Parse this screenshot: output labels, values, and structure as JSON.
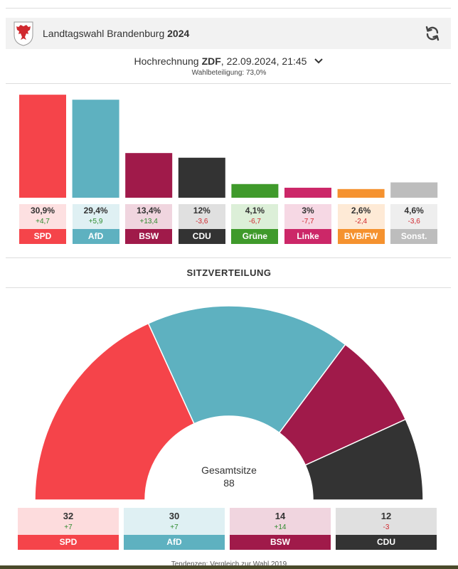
{
  "header": {
    "title_main": "Landtagswahl Brandenburg",
    "title_year": "2024",
    "refresh_icon": "refresh-icon",
    "crest_icon": "brandenburg-eagle-crest-icon"
  },
  "poll": {
    "prefix": "Hochrechnung",
    "source": "ZDF",
    "datetime": ", 22.09.2024, 21:45",
    "turnout": "Wahlbeteiligung: 73,0%"
  },
  "chart_data": [
    {
      "type": "bar",
      "title": "",
      "categories": [
        "SPD",
        "AfD",
        "BSW",
        "CDU",
        "Grüne",
        "Linke",
        "BVB/FW",
        "Sonst."
      ],
      "values": [
        30.9,
        29.4,
        13.4,
        12.0,
        4.1,
        3.0,
        2.6,
        4.6
      ],
      "value_labels": [
        "30,9%",
        "29,4%",
        "13,4%",
        "12%",
        "4,1%",
        "3%",
        "2,6%",
        "4,6%"
      ],
      "diffs": [
        "+4,7",
        "+5,9",
        "+13,4",
        "-3,6",
        "-6,7",
        "-7,7",
        "-2,4",
        "-3,6"
      ],
      "colors": [
        "#f5444a",
        "#5eb1c0",
        "#a01a4a",
        "#333333",
        "#3f9a2b",
        "#cc2768",
        "#f5922f",
        "#bdbdbd"
      ],
      "light_colors": [
        "#fde0e1",
        "#dff0f3",
        "#f0d5df",
        "#e0e0e0",
        "#dcefd8",
        "#f6d8e4",
        "#feead6",
        "#eeeeee"
      ],
      "ylim": [
        0,
        32
      ]
    },
    {
      "type": "pie",
      "title": "SITZVERTEILUNG",
      "categories": [
        "SPD",
        "AfD",
        "BSW",
        "CDU"
      ],
      "values": [
        32,
        30,
        14,
        12
      ],
      "diffs": [
        "+7",
        "+7",
        "+14",
        "-3"
      ],
      "colors": [
        "#f5444a",
        "#5eb1c0",
        "#a01a4a",
        "#333333"
      ],
      "light_colors": [
        "#fddcdd",
        "#dff0f3",
        "#f0d5df",
        "#e0e0e0"
      ],
      "total_label": "Gesamtsitze",
      "total": "88"
    }
  ],
  "footnote": "Tendenzen: Vergleich zur Wahl 2019"
}
